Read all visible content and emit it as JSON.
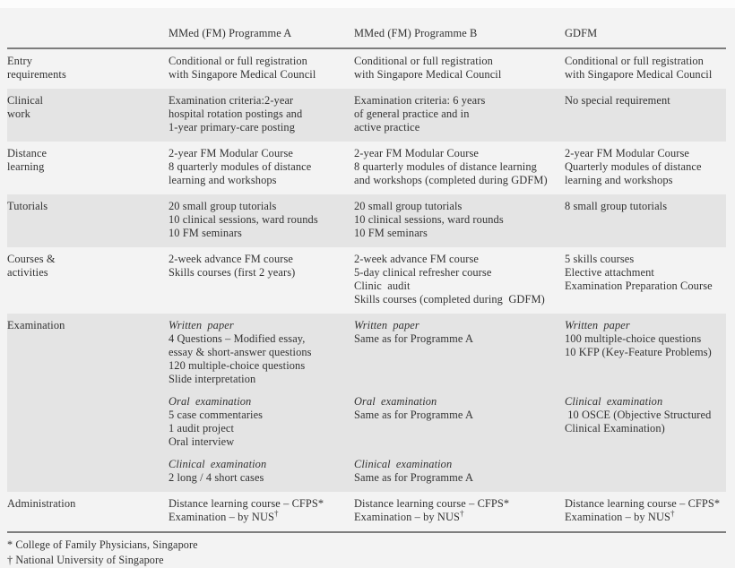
{
  "colors": {
    "page_background": "#f3f3f3",
    "row_shade": "#e4e4e4",
    "rule": "#7d7d7d",
    "text": "#323232"
  },
  "table": {
    "columns": [
      "",
      "MMed (FM) Programme A",
      "MMed (FM) Programme B",
      "GDFM"
    ],
    "rows": [
      {
        "label": [
          "Entry",
          "requirements"
        ],
        "shaded": false,
        "cells": [
          {
            "lines": [
              "Conditional or full registration",
              "with Singapore Medical Council"
            ]
          },
          {
            "lines": [
              "Conditional or full registration",
              "with Singapore Medical Council"
            ]
          },
          {
            "lines": [
              "Conditional or full registration",
              "with Singapore Medical Council"
            ]
          }
        ]
      },
      {
        "label": [
          "Clinical",
          "work"
        ],
        "shaded": true,
        "cells": [
          {
            "lines": [
              "Examination criteria:2-year",
              "hospital rotation postings and",
              "1-year primary-care posting"
            ]
          },
          {
            "lines": [
              "Examination criteria: 6 years",
              "of general practice and in",
              "active practice"
            ]
          },
          {
            "lines": [
              "No special requirement"
            ]
          }
        ]
      },
      {
        "label": [
          "Distance",
          "learning"
        ],
        "shaded": false,
        "cells": [
          {
            "lines": [
              "2-year FM Modular Course",
              "8 quarterly modules of distance",
              "learning and workshops"
            ]
          },
          {
            "lines": [
              "2-year FM Modular Course",
              "8 quarterly modules of distance learning",
              "and workshops (completed during GDFM)"
            ]
          },
          {
            "lines": [
              "2-year FM Modular Course",
              "Quarterly modules of distance",
              "learning and workshops"
            ]
          }
        ]
      },
      {
        "label": [
          "Tutorials"
        ],
        "shaded": true,
        "cells": [
          {
            "lines": [
              "20 small group tutorials",
              "10 clinical sessions, ward rounds",
              "10 FM seminars"
            ]
          },
          {
            "lines": [
              "20 small group tutorials",
              "10 clinical sessions, ward rounds",
              "10 FM seminars"
            ]
          },
          {
            "lines": [
              "8 small group tutorials"
            ]
          }
        ]
      },
      {
        "label": [
          "Courses &",
          "activities"
        ],
        "shaded": false,
        "cells": [
          {
            "lines": [
              "2-week advance FM course",
              "Skills courses (first 2 years)"
            ]
          },
          {
            "lines": [
              "2-week advance FM course",
              "5-day clinical refresher course",
              "Clinic  audit",
              "Skills courses (completed during  GDFM)"
            ]
          },
          {
            "lines": [
              "5 skills courses",
              "Elective attachment",
              "Examination Preparation Course"
            ]
          }
        ]
      },
      {
        "label": [
          "Examination"
        ],
        "shaded": true,
        "group": "examination",
        "cells": [
          {
            "heading": "Written paper",
            "lines": [
              "4 Questions – Modified essay,",
              "essay & short-answer questions",
              "120 multiple-choice questions",
              "Slide interpretation"
            ]
          },
          {
            "heading": "Written paper",
            "lines": [
              "Same as for Programme A"
            ]
          },
          {
            "heading": "Written paper",
            "lines": [
              "100 multiple-choice questions",
              "10 KFP (Key-Feature Problems)"
            ]
          }
        ]
      },
      {
        "label": [],
        "shaded": true,
        "group": "examination",
        "cells": [
          {
            "heading": "Oral examination",
            "lines": [
              "5 case commentaries",
              "1 audit project",
              "Oral interview"
            ]
          },
          {
            "heading": "Oral examination",
            "lines": [
              "Same as for Programme A"
            ]
          },
          {
            "heading": "Clinical examination",
            "lines": [
              " 10 OSCE (Objective Structured",
              "Clinical Examination)"
            ]
          }
        ]
      },
      {
        "label": [],
        "shaded": true,
        "group": "examination",
        "cells": [
          {
            "heading": "Clinical examination",
            "lines": [
              "2 long / 4 short cases"
            ]
          },
          {
            "heading": "Clinical examination",
            "lines": [
              "Same as for Programme A"
            ]
          },
          {
            "lines": []
          }
        ]
      },
      {
        "label": [
          "Administration"
        ],
        "shaded": false,
        "cells": [
          {
            "lines": [
              "Distance learning course – CFPS*",
              "Examination – by NUS†"
            ]
          },
          {
            "lines": [
              "Distance learning course – CFPS*",
              "Examination – by NUS†"
            ]
          },
          {
            "lines": [
              "Distance learning course – CFPS*",
              "Examination – by NUS†"
            ]
          }
        ]
      }
    ],
    "footnotes": [
      "* College of Family Physicians, Singapore",
      "† National University of Singapore"
    ]
  }
}
